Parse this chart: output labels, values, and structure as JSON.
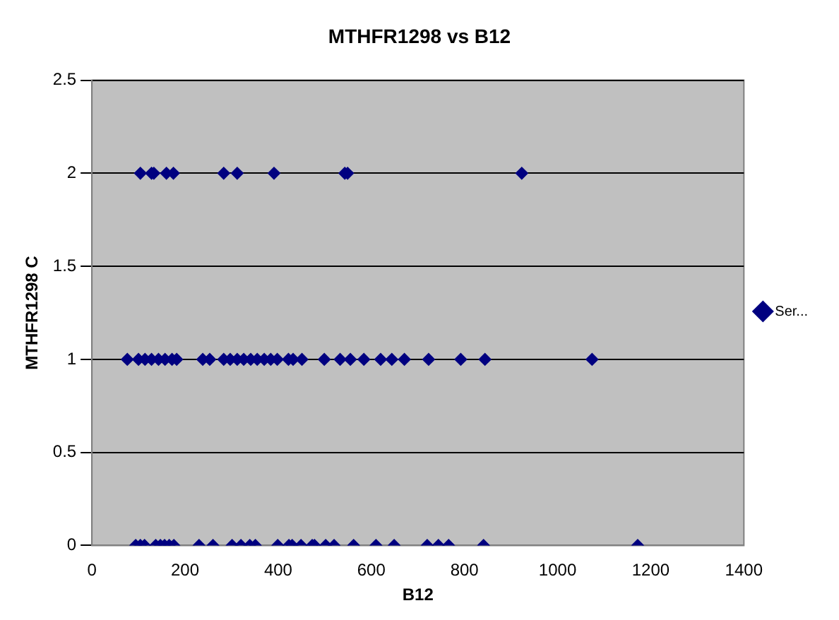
{
  "chart_data": {
    "type": "scatter",
    "title": "MTHFR1298 vs B12",
    "xlabel": "B12",
    "ylabel": "MTHFR1298 C",
    "xlim": [
      0,
      1400
    ],
    "xticks": [
      0,
      200,
      400,
      600,
      800,
      1000,
      1200,
      1400
    ],
    "ylim": [
      0,
      2.5
    ],
    "yticks": [
      0,
      0.5,
      1,
      1.5,
      2,
      2.5
    ],
    "grid": "y",
    "legend": "right",
    "marker": "diamond",
    "series": [
      {
        "name": "Ser...",
        "color": "#000080",
        "x": [
          104,
          128,
          133,
          160,
          175,
          283,
          312,
          391,
          543,
          549,
          923,
          76,
          100,
          114,
          128,
          143,
          157,
          172,
          182,
          238,
          253,
          283,
          297,
          312,
          326,
          341,
          355,
          370,
          384,
          398,
          422,
          432,
          451,
          499,
          533,
          555,
          584,
          620,
          644,
          671,
          723,
          792,
          844,
          1074,
          94,
          104,
          113,
          137,
          147,
          156,
          166,
          176,
          230,
          260,
          301,
          320,
          339,
          351,
          399,
          423,
          430,
          449,
          473,
          478,
          502,
          520,
          562,
          610,
          649,
          720,
          744,
          766,
          841,
          1172
        ],
        "values": [
          2,
          2,
          2,
          2,
          2,
          2,
          2,
          2,
          2,
          2,
          2,
          1,
          1,
          1,
          1,
          1,
          1,
          1,
          1,
          1,
          1,
          1,
          1,
          1,
          1,
          1,
          1,
          1,
          1,
          1,
          1,
          1,
          1,
          1,
          1,
          1,
          1,
          1,
          1,
          1,
          1,
          1,
          1,
          1,
          0,
          0,
          0,
          0,
          0,
          0,
          0,
          0,
          0,
          0,
          0,
          0,
          0,
          0,
          0,
          0,
          0,
          0,
          0,
          0,
          0,
          0,
          0,
          0,
          0,
          0,
          0,
          0,
          0,
          0
        ]
      }
    ]
  }
}
